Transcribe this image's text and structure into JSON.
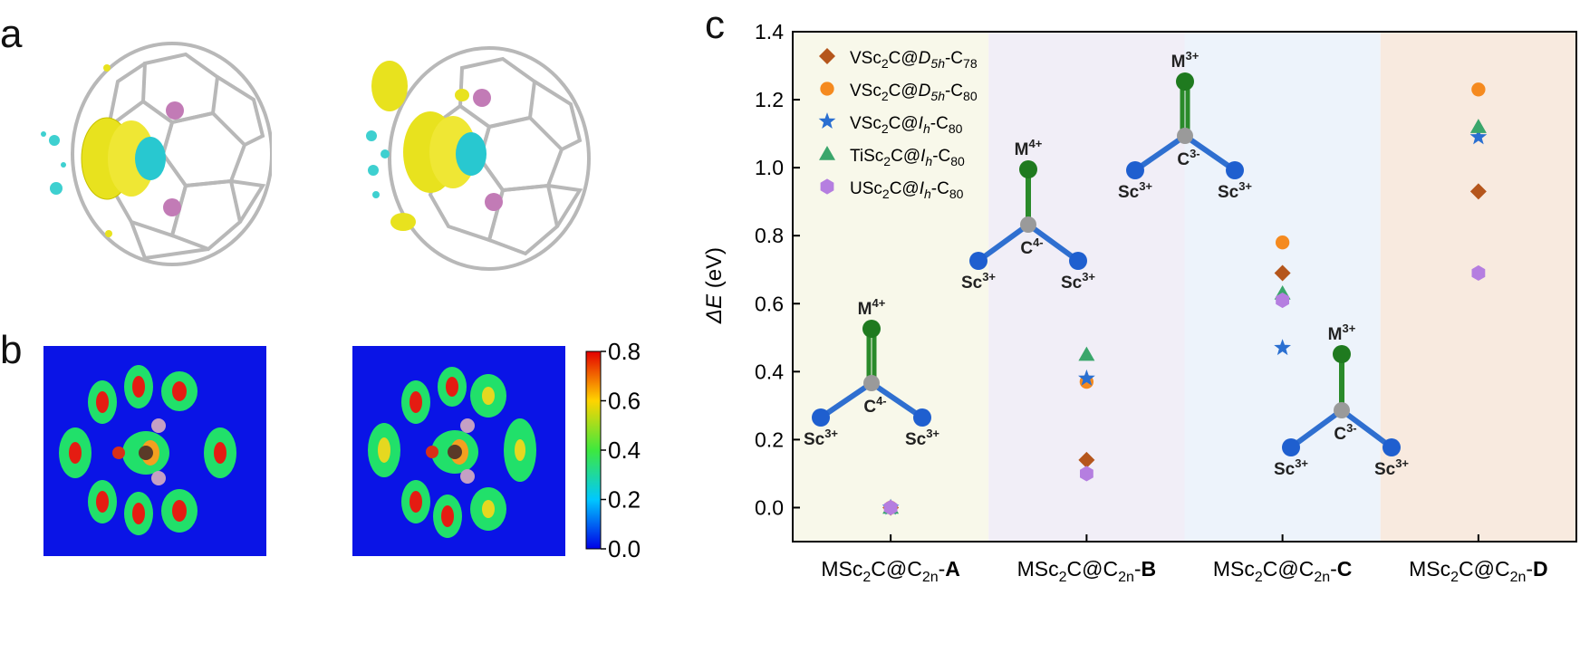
{
  "panel_labels": {
    "a": "a",
    "b": "b",
    "c": "c"
  },
  "colorbar": {
    "ticks": [
      "0.8",
      "0.6",
      "0.4",
      "0.2",
      "0.0"
    ],
    "values": [
      0.8,
      0.6,
      0.4,
      0.2,
      0.0
    ]
  },
  "structure_labels": {
    "A": {
      "metal": "M",
      "metal_charge": "4+",
      "carbon": "C",
      "carbon_charge": "4-",
      "sc": "Sc",
      "sc_charge": "3+"
    },
    "B": {
      "metal": "M",
      "metal_charge": "4+",
      "carbon": "C",
      "carbon_charge": "4-",
      "sc": "Sc",
      "sc_charge": "3+"
    },
    "C": {
      "metal": "M",
      "metal_charge": "3+",
      "carbon": "C",
      "carbon_charge": "3-",
      "sc": "Sc",
      "sc_charge": "3+"
    },
    "D": {
      "metal": "M",
      "metal_charge": "3+",
      "carbon": "C",
      "carbon_charge": "3-",
      "sc": "Sc",
      "sc_charge": "3+"
    }
  },
  "chart_data": {
    "type": "scatter",
    "ylabel": "ΔE (eV)",
    "ylim": [
      -0.1,
      1.4
    ],
    "yticks": [
      0.0,
      0.2,
      0.4,
      0.6,
      0.8,
      1.0,
      1.2,
      1.4
    ],
    "grid": false,
    "legend_position": "top-left",
    "categories": [
      {
        "prefix": "MSc",
        "sub1": "2",
        "mid": "C@C",
        "sub2": "2n",
        "dash": "-",
        "letter": "A"
      },
      {
        "prefix": "MSc",
        "sub1": "2",
        "mid": "C@C",
        "sub2": "2n",
        "dash": "-",
        "letter": "B"
      },
      {
        "prefix": "MSc",
        "sub1": "2",
        "mid": "C@C",
        "sub2": "2n",
        "dash": "-",
        "letter": "C"
      },
      {
        "prefix": "MSc",
        "sub1": "2",
        "mid": "C@C",
        "sub2": "2n",
        "dash": "-",
        "letter": "D"
      }
    ],
    "band_colors": [
      "#f8f8ea",
      "#f1eef7",
      "#edf3fb",
      "#f8eadf"
    ],
    "series": [
      {
        "name": "VSc₂C@D₅ₕ-C₇₈",
        "legend": [
          "VSc",
          "2",
          "C@",
          "D",
          "5h",
          "-C",
          "78"
        ],
        "marker": "diamond",
        "color": "#b5561c",
        "values": [
          0.0,
          0.14,
          0.69,
          0.93
        ]
      },
      {
        "name": "VSc₂C@D₅ₕ-C₈₀",
        "legend": [
          "VSc",
          "2",
          "C@",
          "D",
          "5h",
          "-C",
          "80"
        ],
        "marker": "circle",
        "color": "#f58a1f",
        "values": [
          0.0,
          0.37,
          0.78,
          1.23
        ]
      },
      {
        "name": "VSc₂C@Iₕ-C₈₀",
        "legend": [
          "VSc",
          "2",
          "C@",
          "I",
          "h",
          "-C",
          "80"
        ],
        "marker": "star",
        "color": "#2a6fd1",
        "values": [
          0.0,
          0.38,
          0.47,
          1.09
        ]
      },
      {
        "name": "TiSc₂C@Iₕ-C₈₀",
        "legend": [
          "TiSc",
          "2",
          "C@",
          "I",
          "h",
          "-C",
          "80"
        ],
        "marker": "triangle",
        "color": "#3aa66b",
        "values": [
          0.0,
          0.45,
          0.63,
          1.12
        ]
      },
      {
        "name": "USc₂C@Iₕ-C₈₀",
        "legend": [
          "USc",
          "2",
          "C@",
          "I",
          "h",
          "-C",
          "80"
        ],
        "marker": "hexagon",
        "color": "#b57ee0",
        "values": [
          0.0,
          0.1,
          0.61,
          0.69
        ]
      }
    ]
  }
}
